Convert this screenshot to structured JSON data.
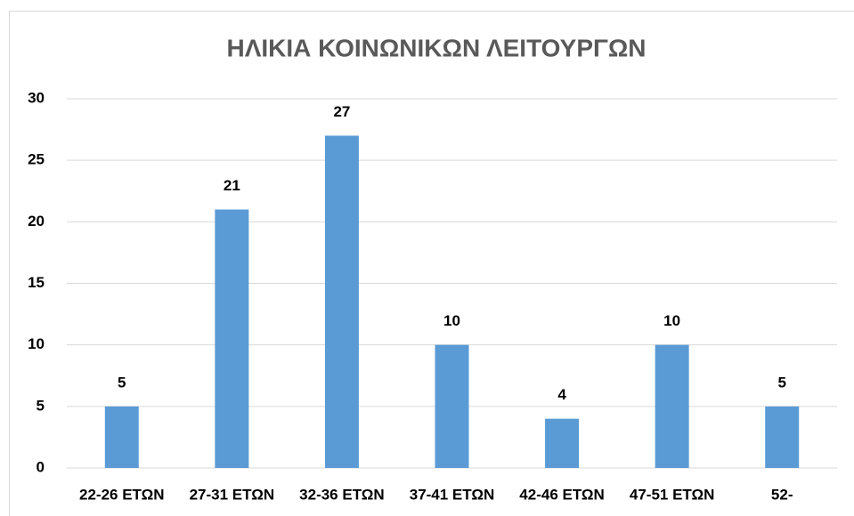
{
  "chart_data": {
    "type": "bar",
    "title": "ΗΛΙΚΙΑ ΚΟΙΝΩΝΙΚΩΝ ΛΕΙΤΟΥΡΓΩΝ",
    "categories": [
      "22-26 ΕΤΩΝ",
      "27-31 ΕΤΩΝ",
      "32-36 ΕΤΩΝ",
      "37-41 ΕΤΩΝ",
      "42-46 ΕΤΩΝ",
      "47-51 ΕΤΩΝ",
      "52-"
    ],
    "values": [
      5,
      21,
      27,
      10,
      4,
      10,
      5
    ],
    "color": "#5b9bd5",
    "ylim": [
      0,
      30
    ],
    "yticks": [
      0,
      5,
      10,
      15,
      20,
      25,
      30
    ],
    "grid": true
  }
}
